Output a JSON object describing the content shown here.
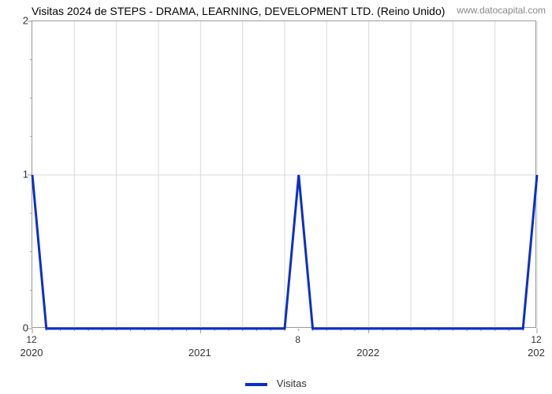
{
  "title": "Visitas 2024 de STEPS - DRAMA, LEARNING, DEVELOPMENT LTD. (Reino Unido)",
  "watermark": "www.datocapital.com",
  "chart": {
    "type": "line",
    "background_color": "#ffffff",
    "grid_color": "#d9d9d9",
    "axis_color": "#999999",
    "line_color": "#0b2ecb",
    "line_width": 3,
    "title_fontsize": 14,
    "label_fontsize": 13,
    "x_domain": [
      0,
      36
    ],
    "ylim": [
      0,
      2
    ],
    "yticks_major": [
      0,
      1,
      2
    ],
    "yticks_minor": [
      0.25,
      0.5,
      0.75,
      1.25,
      1.5,
      1.75
    ],
    "xticks_major": [
      0,
      12,
      24,
      36
    ],
    "xticks_major_labels": [
      "2020",
      "2021",
      "2022",
      "202"
    ],
    "xticks_minor": [
      1,
      2,
      3,
      4,
      5,
      6,
      7,
      8,
      9,
      10,
      11,
      13,
      14,
      15,
      16,
      17,
      18,
      19,
      20,
      21,
      22,
      23,
      25,
      26,
      27,
      28,
      29,
      30,
      31,
      32,
      33,
      34,
      35
    ],
    "xgrid_lines": [
      3,
      6,
      9,
      12,
      15,
      18,
      21,
      24,
      27,
      30,
      33,
      36
    ],
    "series": {
      "name": "Visitas",
      "points": [
        {
          "x": 0,
          "y": 1
        },
        {
          "x": 1,
          "y": 0
        },
        {
          "x": 18,
          "y": 0
        },
        {
          "x": 19,
          "y": 1
        },
        {
          "x": 20,
          "y": 0
        },
        {
          "x": 35,
          "y": 0
        },
        {
          "x": 36,
          "y": 1
        }
      ]
    },
    "point_labels": [
      {
        "x": 0,
        "text": "12"
      },
      {
        "x": 19,
        "text": "8"
      },
      {
        "x": 36,
        "text": "12"
      }
    ]
  },
  "legend": {
    "label": "Visitas"
  }
}
